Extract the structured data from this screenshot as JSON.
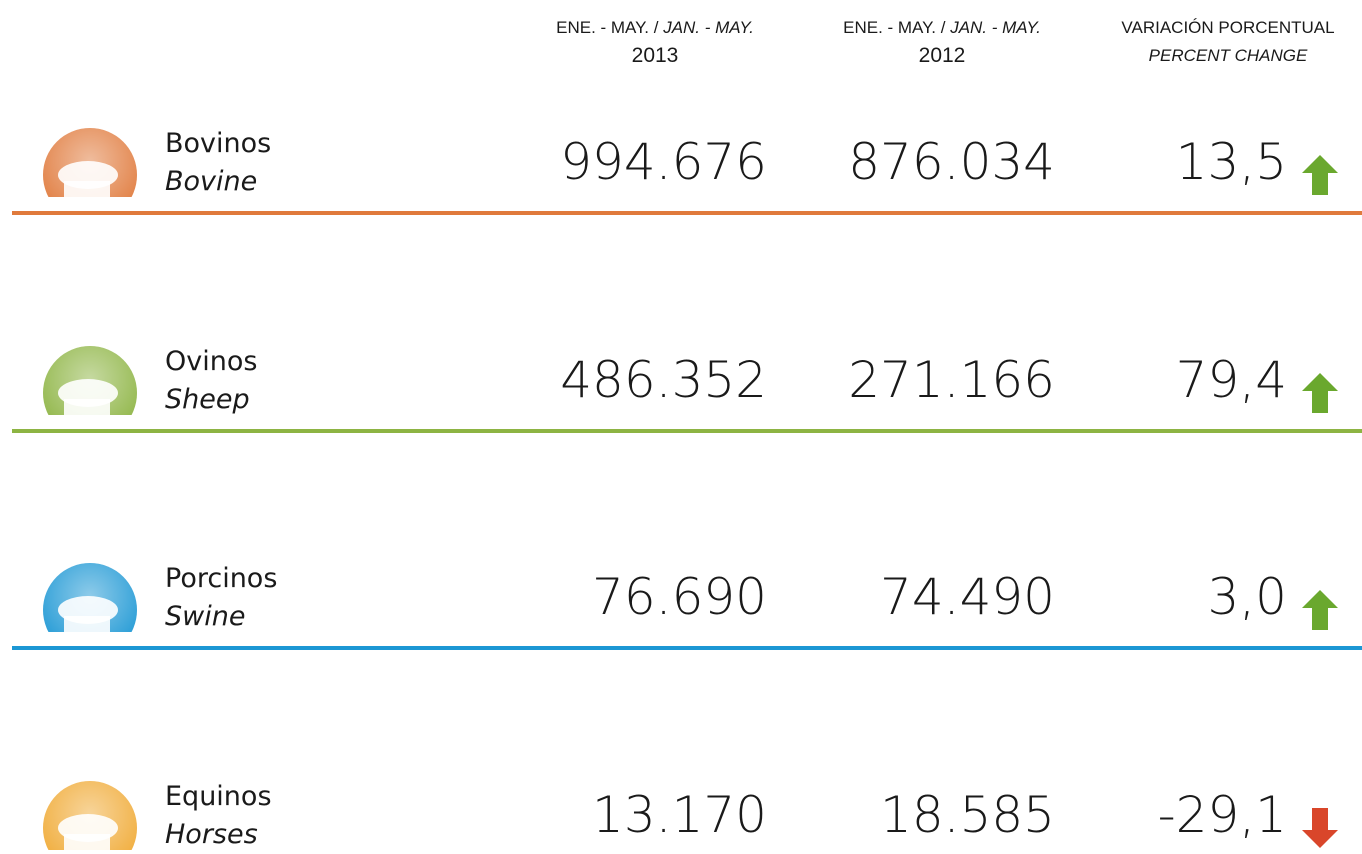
{
  "headers": [
    {
      "es": "ENE. - MAY. /",
      "en": "JAN. - MAY.",
      "year": "2013"
    },
    {
      "es": "ENE. - MAY. /",
      "en": "JAN. - MAY.",
      "year": "2012"
    },
    {
      "es": "VARIACIÓN PORCENTUAL",
      "en": "PERCENT CHANGE"
    }
  ],
  "rows": [
    {
      "name": "Bovinos",
      "name_en": "Bovine",
      "v2013": "994.676",
      "v2012": "876.034",
      "change": "13,5",
      "trend": "up",
      "color": "#e07a3c"
    },
    {
      "name": "Ovinos",
      "name_en": "Sheep",
      "v2013": "486.352",
      "v2012": "271.166",
      "change": "79,4",
      "trend": "up",
      "color": "#8db443"
    },
    {
      "name": "Porcinos",
      "name_en": "Swine",
      "v2013": "76.690",
      "v2012": "74.490",
      "change": "3,0",
      "trend": "up",
      "color": "#1c97d4"
    },
    {
      "name": "Equinos",
      "name_en": "Horses",
      "v2013": "13.170",
      "v2012": "18.585",
      "change": "-29,1",
      "trend": "down",
      "color": "#f0aa35"
    }
  ]
}
